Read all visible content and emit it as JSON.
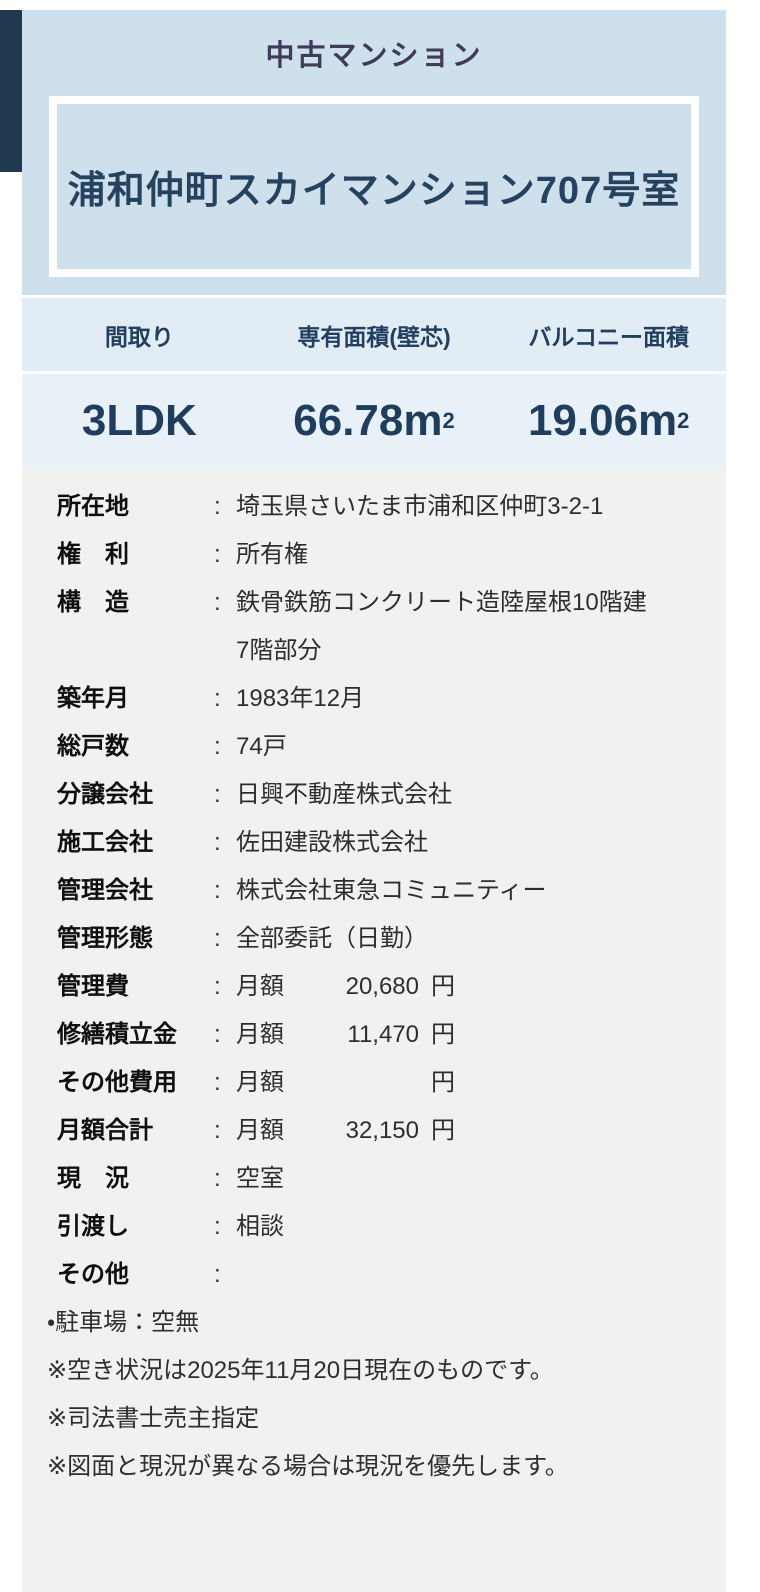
{
  "colors": {
    "navy_stripe": "#21394f",
    "header_bg": "#cfe0ed",
    "table_head_bg": "#e2ecf5",
    "table_value_bg": "#e8f1f8",
    "details_bg": "#f1f1ef",
    "title_text": "#3f3b59",
    "name_text": "#25425e",
    "table_text": "#1f3e5e"
  },
  "header": {
    "category": "中古マンション",
    "property_name": "浦和仲町スカイマンション707号室"
  },
  "summary_table": {
    "columns": [
      {
        "label": "間取り",
        "value": "3LDK",
        "unit": "",
        "sup": ""
      },
      {
        "label": "専有面積(壁芯)",
        "value": "66.78",
        "unit": "m",
        "sup": "2"
      },
      {
        "label": "バルコニー面積",
        "value": "19.06",
        "unit": "m",
        "sup": "2"
      }
    ]
  },
  "details": {
    "colon": ":",
    "rows": [
      {
        "label": "所在地",
        "value": "埼玉県さいたま市浦和区仲町3-2-1",
        "value2": "",
        "amount": "",
        "unit": ""
      },
      {
        "label": "権　利",
        "value": "所有権",
        "value2": "",
        "amount": "",
        "unit": ""
      },
      {
        "label": "構　造",
        "value": "鉄骨鉄筋コンクリート造陸屋根10階建",
        "value2": "7階部分",
        "amount": "",
        "unit": ""
      },
      {
        "label": "築年月",
        "value": "1983年12月",
        "value2": "",
        "amount": "",
        "unit": ""
      },
      {
        "label": "総戸数",
        "value": "74戸",
        "value2": "",
        "amount": "",
        "unit": ""
      },
      {
        "label": "分譲会社",
        "value": "日興不動産株式会社",
        "value2": "",
        "amount": "",
        "unit": ""
      },
      {
        "label": "施工会社",
        "value": "佐田建設株式会社",
        "value2": "",
        "amount": "",
        "unit": ""
      },
      {
        "label": "管理会社",
        "value": "株式会社東急コミュニティー",
        "value2": "",
        "amount": "",
        "unit": ""
      },
      {
        "label": "管理形態",
        "value": "全部委託（日勤）",
        "value2": "",
        "amount": "",
        "unit": ""
      },
      {
        "label": "管理費",
        "value": "月額",
        "value2": "",
        "amount": "20,680",
        "unit": "円"
      },
      {
        "label": "修繕積立金",
        "value": "月額",
        "value2": "",
        "amount": "11,470",
        "unit": "円"
      },
      {
        "label": "その他費用",
        "value": "月額",
        "value2": "",
        "amount": " ",
        "unit": "円"
      },
      {
        "label": "月額合計",
        "value": "月額",
        "value2": "",
        "amount": "32,150",
        "unit": "円"
      },
      {
        "label": "現　況",
        "value": "空室",
        "value2": "",
        "amount": "",
        "unit": ""
      },
      {
        "label": "引渡し",
        "value": "相談",
        "value2": "",
        "amount": "",
        "unit": ""
      },
      {
        "label": "その他",
        "value": "",
        "value2": "",
        "amount": "",
        "unit": ""
      }
    ],
    "notes": [
      "・駐車場：空無",
      "※空き状況は2025年11月20日現在のものです。",
      "※司法書士売主指定",
      "※図面と現況が異なる場合は現況を優先します。"
    ]
  }
}
